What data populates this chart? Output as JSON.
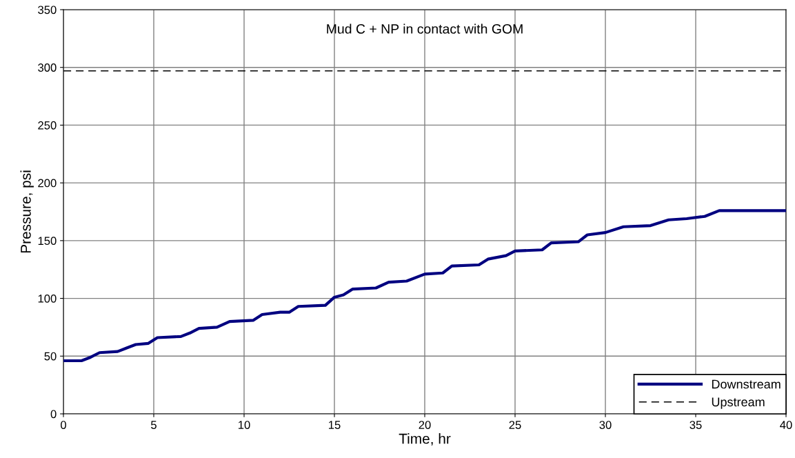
{
  "chart_data": {
    "type": "line",
    "title": "Mud C + NP in contact with GOM",
    "xlabel": "Time, hr",
    "ylabel": "Pressure, psi",
    "xlim": [
      0,
      40
    ],
    "xticks": [
      0,
      5,
      10,
      15,
      20,
      25,
      30,
      35,
      40
    ],
    "ylim": [
      0,
      350
    ],
    "yticks": [
      0,
      50,
      100,
      150,
      200,
      250,
      300,
      350
    ],
    "grid": true,
    "legend": "bottom right",
    "series": [
      {
        "name": "Downstream",
        "color": "#000080",
        "line_style": "solid",
        "x": [
          0,
          1,
          1.5,
          2,
          3,
          3.5,
          4,
          4.7,
          5.2,
          6.5,
          7,
          7.5,
          8.5,
          9.2,
          10.5,
          11,
          12,
          12.5,
          13,
          14.5,
          15,
          15.5,
          16,
          17.3,
          18,
          19,
          20,
          21,
          21.5,
          23,
          23.5,
          24.5,
          25,
          26.5,
          27,
          28.5,
          29,
          30,
          31,
          32.5,
          33.5,
          34.5,
          35.5,
          36.3,
          40
        ],
        "values": [
          46,
          46,
          49,
          53,
          54,
          57,
          60,
          61,
          66,
          67,
          70,
          74,
          75,
          80,
          81,
          86,
          88,
          88,
          93,
          94,
          101,
          103,
          108,
          109,
          114,
          115,
          121,
          122,
          128,
          129,
          134,
          137,
          141,
          142,
          148,
          149,
          155,
          157,
          162,
          163,
          168,
          169,
          171,
          176,
          176
        ]
      },
      {
        "name": "Upstream",
        "color": "#000000",
        "line_style": "dashed",
        "x": [
          0,
          5,
          10,
          15,
          20,
          25,
          30,
          35,
          40
        ],
        "values": [
          297,
          297,
          297,
          297,
          297,
          297,
          297,
          297,
          297
        ]
      }
    ]
  }
}
